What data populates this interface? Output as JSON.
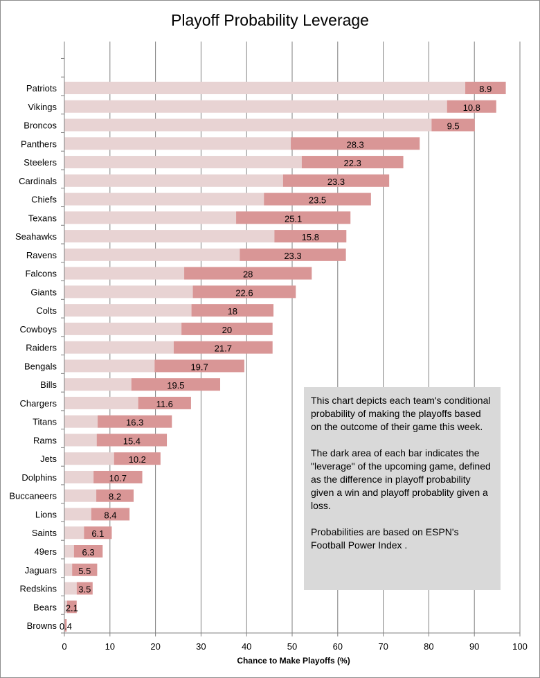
{
  "chart_data": {
    "type": "bar",
    "orientation": "horizontal",
    "stacked": true,
    "title": "Playoff Probability  Leverage",
    "xlabel": "Chance to Make Playoffs (%)",
    "ylabel": "",
    "xlim": [
      0,
      100
    ],
    "xticks": [
      0,
      10,
      20,
      30,
      40,
      50,
      60,
      70,
      80,
      90,
      100
    ],
    "grid": true,
    "series": [
      {
        "name": "Playoff probability given a loss",
        "color": "#e8d3d3"
      },
      {
        "name": "Leverage",
        "color": "#d99696"
      }
    ],
    "categories": [
      "Patriots",
      "Vikings",
      "Broncos",
      "Panthers",
      "Steelers",
      "Cardinals",
      "Chiefs",
      "Texans",
      "Seahawks",
      "Ravens",
      "Falcons",
      "Giants",
      "Colts",
      "Cowboys",
      "Raiders",
      "Bengals",
      "Bills",
      "Chargers",
      "Titans",
      "Rams",
      "Jets",
      "Dolphins",
      "Buccaneers",
      "Lions",
      "Saints",
      "49ers",
      "Jaguars",
      "Redskins",
      "Bears",
      "Browns"
    ],
    "loss_values": [
      88.0,
      84.0,
      80.6,
      49.7,
      52.1,
      48.0,
      43.8,
      37.7,
      46.1,
      38.5,
      26.3,
      28.2,
      27.9,
      25.7,
      24.0,
      19.8,
      14.7,
      16.2,
      7.3,
      7.1,
      10.9,
      6.4,
      7.0,
      5.9,
      4.3,
      2.1,
      1.7,
      2.7,
      0.6,
      0.1
    ],
    "leverage_values": [
      8.9,
      10.8,
      9.5,
      28.3,
      22.3,
      23.3,
      23.5,
      25.1,
      15.8,
      23.3,
      28,
      22.6,
      18,
      20,
      21.7,
      19.7,
      19.5,
      11.6,
      16.3,
      15.4,
      10.2,
      10.7,
      8.2,
      8.4,
      6.1,
      6.3,
      5.5,
      3.5,
      2.1,
      0.4
    ],
    "leverage_labels": [
      "8.9",
      "10.8",
      "9.5",
      "28.3",
      "22.3",
      "23.3",
      "23.5",
      "25.1",
      "15.8",
      "23.3",
      "28",
      "22.6",
      "18",
      "20",
      "21.7",
      "19.7",
      "19.5",
      "11.6",
      "16.3",
      "15.4",
      "10.2",
      "10.7",
      "8.2",
      "8.4",
      "6.1",
      "6.3",
      "5.5",
      "3.5",
      "2.1",
      "0.4"
    ],
    "annotation": [
      "This chart depicts each team's conditional probability of making the playoffs based on the outcome of their game this week.",
      "The dark area of each bar indicates the \"leverage\" of the upcoming game, defined as the difference in playoff probability given a win and playoff probablity given a loss.",
      "Probabilities are based on ESPN's Football Power Index ."
    ]
  }
}
